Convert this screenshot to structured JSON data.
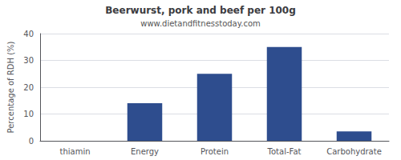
{
  "chart_data": {
    "type": "bar",
    "title": "Beerwurst, pork and beef per 100g",
    "subtitle": "www.dietandfitnesstoday.com",
    "categories": [
      "thiamin",
      "Energy",
      "Protein",
      "Total-Fat",
      "Carbohydrate"
    ],
    "values": [
      0,
      14,
      25,
      35,
      3.5
    ],
    "color": "#2e4d8e",
    "ylabel": "Percentage of RDH (%)",
    "ylim": [
      0,
      40
    ],
    "yticks": [
      0,
      10,
      20,
      30,
      40
    ],
    "grid": true
  }
}
